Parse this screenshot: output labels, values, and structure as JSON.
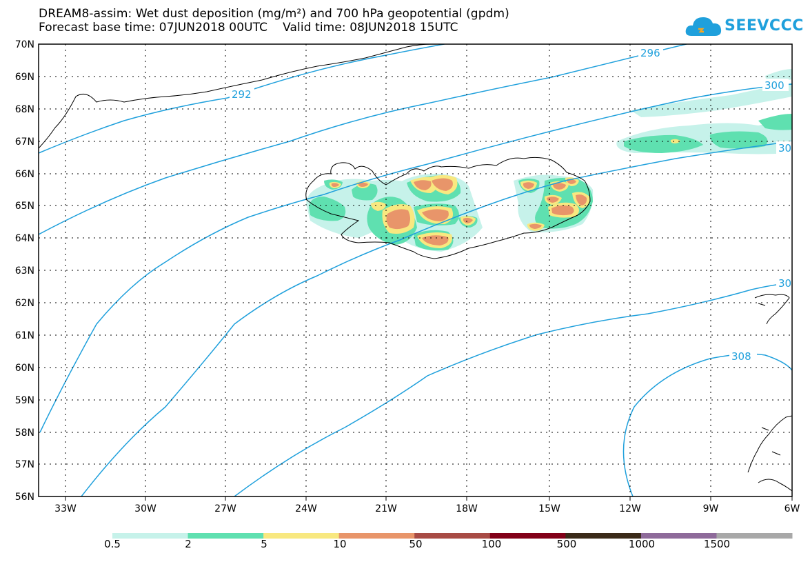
{
  "title": {
    "line1": "DREAM8-assim: Wet dust deposition (mg/m²) and 700 hPa geopotential (gpdm)",
    "line2": "Forecast base time: 07JUN2018 00UTC    Valid time: 08JUN2018 15UTC"
  },
  "logo": {
    "text": "SEEVCCC",
    "icon": "cloud-icon"
  },
  "map": {
    "lon_labels": [
      "33W",
      "30W",
      "27W",
      "24W",
      "21W",
      "18W",
      "15W",
      "12W",
      "9W",
      "6W"
    ],
    "lat_labels": [
      "70N",
      "69N",
      "68N",
      "67N",
      "66N",
      "65N",
      "64N",
      "63N",
      "62N",
      "61N",
      "60N",
      "59N",
      "58N",
      "57N",
      "56N"
    ],
    "contour_labels": [
      "292",
      "296",
      "300",
      "30",
      "30",
      "308"
    ],
    "contour_color": "#1fa0dc"
  },
  "colorbar": {
    "labels": [
      "0.5",
      "2",
      "5",
      "10",
      "50",
      "100",
      "500",
      "1000",
      "1500"
    ],
    "colors": [
      "#c6f2ea",
      "#5fe0b0",
      "#f8e880",
      "#e8956a",
      "#a84b45",
      "#820018",
      "#3a2a18",
      "#8e6a9a",
      "#a8a8a8"
    ]
  }
}
